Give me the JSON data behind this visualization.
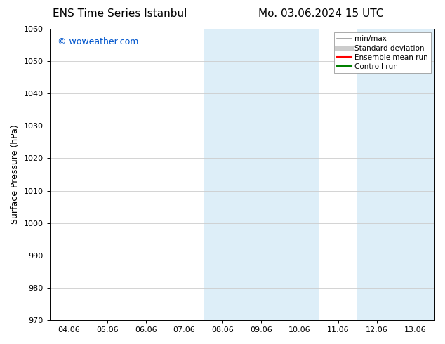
{
  "title_left": "ENS Time Series Istanbul",
  "title_right": "Mo. 03.06.2024 15 UTC",
  "ylabel": "Surface Pressure (hPa)",
  "ylim": [
    970,
    1060
  ],
  "yticks": [
    970,
    980,
    990,
    1000,
    1010,
    1020,
    1030,
    1040,
    1050,
    1060
  ],
  "xtick_labels": [
    "04.06",
    "05.06",
    "06.06",
    "07.06",
    "08.06",
    "09.06",
    "10.06",
    "11.06",
    "12.06",
    "13.06"
  ],
  "shade_color": "#ddeef8",
  "grid_color": "#cccccc",
  "background_color": "#ffffff",
  "plot_bg_color": "#ffffff",
  "watermark_text": "© woweather.com",
  "watermark_color": "#0055cc",
  "legend_entries": [
    {
      "label": "min/max",
      "color": "#999999",
      "lw": 1.2
    },
    {
      "label": "Standard deviation",
      "color": "#cccccc",
      "lw": 5
    },
    {
      "label": "Ensemble mean run",
      "color": "#ff0000",
      "lw": 1.5
    },
    {
      "label": "Controll run",
      "color": "#008000",
      "lw": 1.5
    }
  ],
  "title_fontsize": 11,
  "tick_fontsize": 8,
  "ylabel_fontsize": 9,
  "watermark_fontsize": 9,
  "num_days": 10,
  "start_day": 4,
  "shaded_day_ranges": [
    [
      8,
      10
    ],
    [
      12,
      13.06
    ]
  ]
}
